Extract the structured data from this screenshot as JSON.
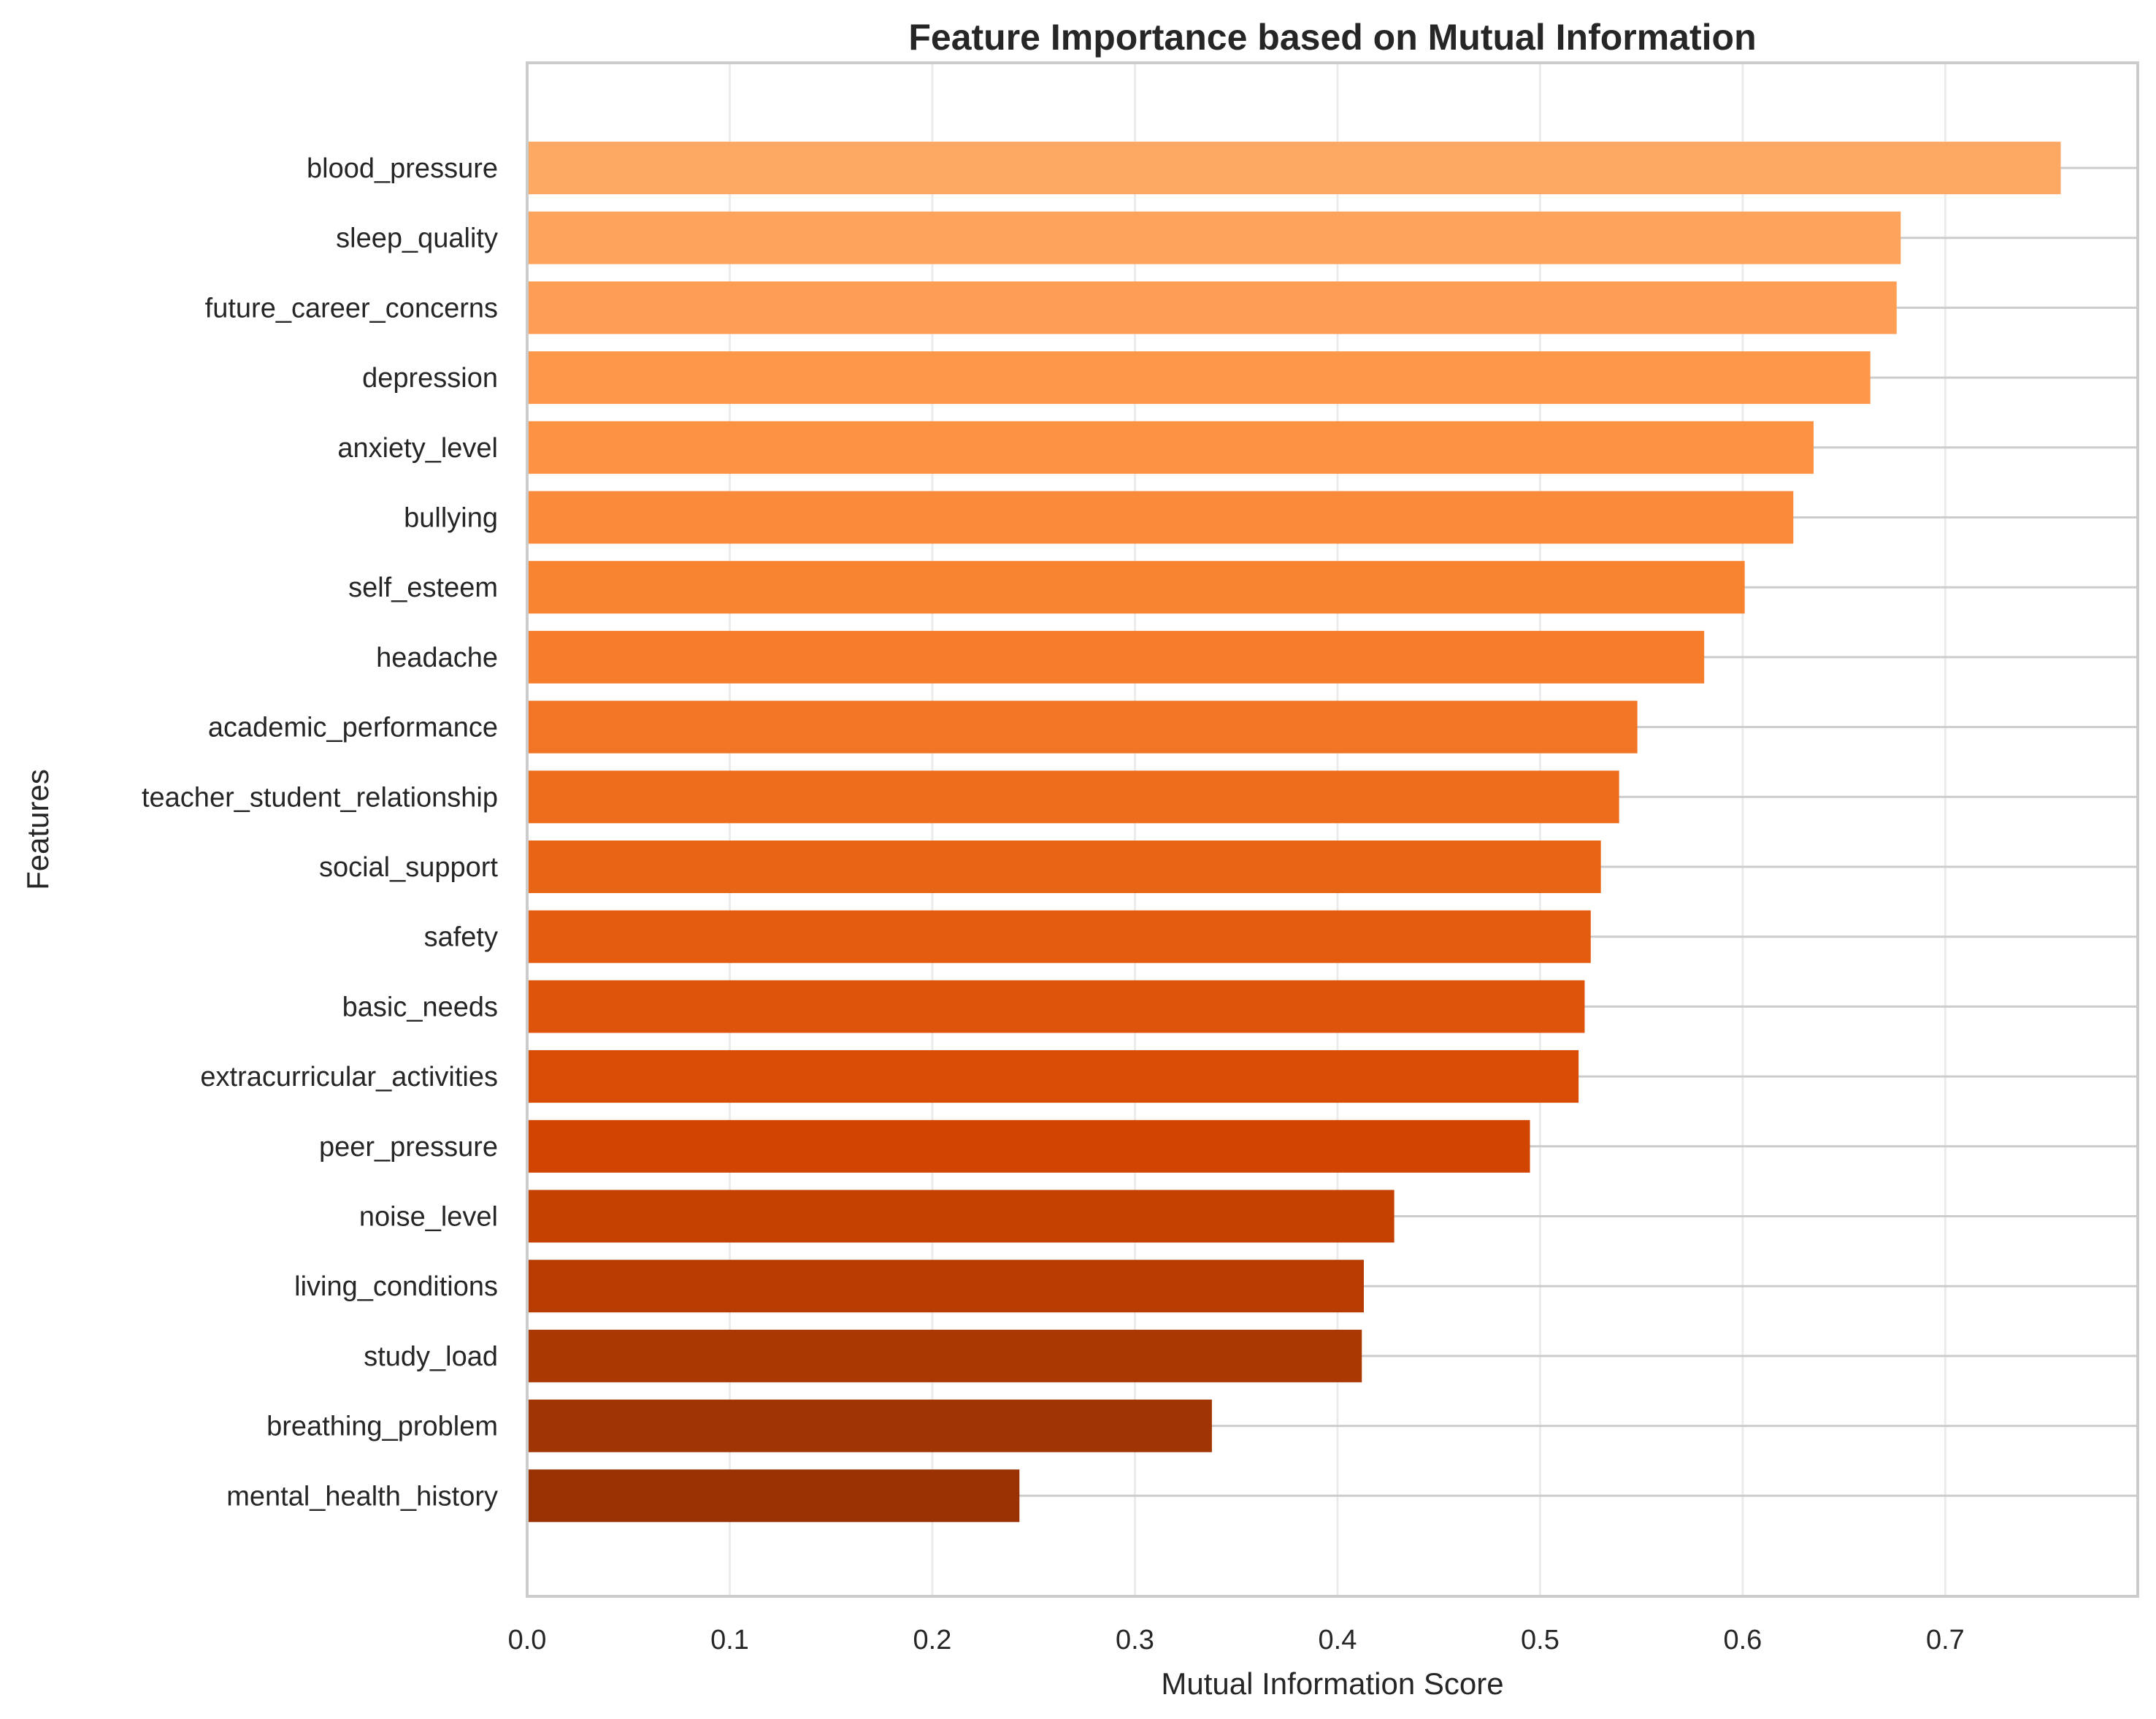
{
  "chart_data": {
    "type": "bar",
    "orientation": "horizontal",
    "title": "Feature Importance based on Mutual Information",
    "xlabel": "Mutual Information Score",
    "ylabel": "Features",
    "xlim": [
      0.0,
      0.795
    ],
    "xticks": [
      "0.0",
      "0.1",
      "0.2",
      "0.3",
      "0.4",
      "0.5",
      "0.6",
      "0.7"
    ],
    "grid": true,
    "categories": [
      "blood_pressure",
      "sleep_quality",
      "future_career_concerns",
      "depression",
      "anxiety_level",
      "bullying",
      "self_esteem",
      "headache",
      "academic_performance",
      "teacher_student_relationship",
      "social_support",
      "safety",
      "basic_needs",
      "extracurricular_activities",
      "peer_pressure",
      "noise_level",
      "living_conditions",
      "study_load",
      "breathing_problem",
      "mental_health_history"
    ],
    "values": [
      0.757,
      0.678,
      0.676,
      0.663,
      0.635,
      0.625,
      0.601,
      0.581,
      0.548,
      0.539,
      0.53,
      0.525,
      0.522,
      0.519,
      0.495,
      0.428,
      0.413,
      0.412,
      0.338,
      0.243
    ],
    "colors": [
      "#fda863",
      "#fda35c",
      "#fd9e54",
      "#fd984b",
      "#fd9243",
      "#fb8b3a",
      "#f88432",
      "#f57d2b",
      "#f17524",
      "#ee6d1d",
      "#e96516",
      "#e45c10",
      "#df540b",
      "#d94c05",
      "#d14501",
      "#c54102",
      "#b83c02",
      "#aa3803",
      "#a03403",
      "#993103"
    ]
  }
}
